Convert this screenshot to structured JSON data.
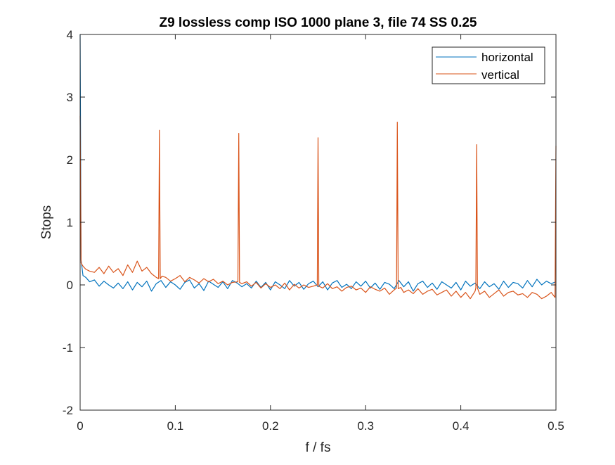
{
  "chart_data": {
    "type": "line",
    "title": "Z9 lossless comp ISO 1000 plane 3, file 74 SS 0.25",
    "xlabel": "f / fs",
    "ylabel": "Stops",
    "xlim": [
      0,
      0.5
    ],
    "ylim": [
      -2,
      4
    ],
    "xticks": [
      0,
      0.1,
      0.2,
      0.3,
      0.4,
      0.5
    ],
    "xtick_labels": [
      "0",
      "0.1",
      "0.2",
      "0.3",
      "0.4",
      "0.5"
    ],
    "yticks": [
      -2,
      -1,
      0,
      1,
      2,
      3,
      4
    ],
    "ytick_labels": [
      "-2",
      "-1",
      "0",
      "1",
      "2",
      "3",
      "4"
    ],
    "grid": false,
    "legend_position": "top-right",
    "series": [
      {
        "name": "horizontal",
        "color": "#0072BD",
        "x": [
          0,
          0.001,
          0.003,
          0.006,
          0.01,
          0.015,
          0.02,
          0.025,
          0.03,
          0.035,
          0.04,
          0.045,
          0.05,
          0.055,
          0.06,
          0.065,
          0.07,
          0.075,
          0.08,
          0.085,
          0.09,
          0.095,
          0.1,
          0.105,
          0.11,
          0.115,
          0.12,
          0.125,
          0.13,
          0.135,
          0.14,
          0.145,
          0.15,
          0.155,
          0.16,
          0.165,
          0.17,
          0.175,
          0.18,
          0.185,
          0.19,
          0.195,
          0.2,
          0.205,
          0.21,
          0.215,
          0.22,
          0.225,
          0.23,
          0.235,
          0.24,
          0.245,
          0.25,
          0.255,
          0.26,
          0.265,
          0.27,
          0.275,
          0.28,
          0.285,
          0.29,
          0.295,
          0.3,
          0.305,
          0.31,
          0.315,
          0.32,
          0.325,
          0.33,
          0.335,
          0.34,
          0.345,
          0.35,
          0.355,
          0.36,
          0.365,
          0.37,
          0.375,
          0.38,
          0.385,
          0.39,
          0.395,
          0.4,
          0.405,
          0.41,
          0.415,
          0.42,
          0.425,
          0.43,
          0.435,
          0.44,
          0.445,
          0.45,
          0.455,
          0.46,
          0.465,
          0.47,
          0.475,
          0.48,
          0.485,
          0.49,
          0.495,
          0.5
        ],
        "values": [
          4.0,
          0.4,
          0.15,
          0.12,
          0.05,
          0.08,
          -0.02,
          0.06,
          0.0,
          -0.05,
          0.03,
          -0.06,
          0.05,
          -0.08,
          0.04,
          -0.03,
          0.06,
          -0.1,
          0.02,
          0.07,
          -0.04,
          0.05,
          0.0,
          -0.07,
          0.04,
          0.08,
          -0.05,
          0.02,
          -0.09,
          0.06,
          0.01,
          -0.04,
          0.05,
          -0.06,
          0.07,
          0.03,
          -0.03,
          0.02,
          -0.05,
          0.06,
          -0.04,
          0.04,
          -0.08,
          0.05,
          0.0,
          -0.06,
          0.07,
          -0.02,
          0.04,
          -0.07,
          0.02,
          0.06,
          -0.03,
          0.05,
          -0.08,
          0.03,
          0.07,
          -0.04,
          0.01,
          -0.06,
          0.05,
          -0.02,
          0.06,
          -0.05,
          0.03,
          -0.07,
          0.04,
          0.01,
          -0.06,
          0.07,
          -0.03,
          0.05,
          -0.1,
          0.02,
          0.06,
          -0.04,
          0.03,
          -0.07,
          0.05,
          0.0,
          -0.05,
          0.04,
          -0.08,
          0.06,
          -0.02,
          0.03,
          -0.06,
          0.05,
          -0.03,
          0.02,
          -0.07,
          0.06,
          -0.04,
          0.04,
          0.02,
          -0.05,
          0.07,
          -0.03,
          0.09,
          0.0,
          0.06,
          0.02,
          0.05
        ]
      },
      {
        "name": "vertical",
        "color": "#D95319",
        "x": [
          0,
          0.001,
          0.003,
          0.006,
          0.01,
          0.015,
          0.02,
          0.025,
          0.03,
          0.035,
          0.04,
          0.045,
          0.05,
          0.055,
          0.06,
          0.065,
          0.07,
          0.075,
          0.08,
          0.0825,
          0.0833,
          0.0842,
          0.086,
          0.09,
          0.095,
          0.1,
          0.105,
          0.11,
          0.115,
          0.12,
          0.125,
          0.13,
          0.135,
          0.14,
          0.145,
          0.15,
          0.155,
          0.16,
          0.1658,
          0.1667,
          0.1675,
          0.17,
          0.175,
          0.18,
          0.185,
          0.19,
          0.195,
          0.2,
          0.205,
          0.21,
          0.215,
          0.22,
          0.225,
          0.23,
          0.235,
          0.24,
          0.245,
          0.2492,
          0.25,
          0.2508,
          0.255,
          0.26,
          0.265,
          0.27,
          0.275,
          0.28,
          0.285,
          0.29,
          0.295,
          0.3,
          0.305,
          0.31,
          0.315,
          0.32,
          0.325,
          0.33,
          0.3325,
          0.3333,
          0.3342,
          0.337,
          0.34,
          0.345,
          0.35,
          0.355,
          0.36,
          0.365,
          0.37,
          0.375,
          0.38,
          0.385,
          0.39,
          0.395,
          0.4,
          0.405,
          0.41,
          0.415,
          0.4158,
          0.4167,
          0.4175,
          0.42,
          0.425,
          0.43,
          0.435,
          0.44,
          0.445,
          0.45,
          0.455,
          0.46,
          0.465,
          0.47,
          0.475,
          0.48,
          0.485,
          0.49,
          0.495,
          0.499,
          0.5
        ],
        "values": [
          2.7,
          0.35,
          0.3,
          0.25,
          0.22,
          0.2,
          0.28,
          0.18,
          0.3,
          0.2,
          0.26,
          0.15,
          0.32,
          0.2,
          0.38,
          0.22,
          0.28,
          0.18,
          0.12,
          0.1,
          2.47,
          0.1,
          0.14,
          0.12,
          0.06,
          0.1,
          0.15,
          0.05,
          0.12,
          0.08,
          0.03,
          0.1,
          0.05,
          0.09,
          0.02,
          0.06,
          0.0,
          0.04,
          0.05,
          2.42,
          0.04,
          0.02,
          0.05,
          -0.02,
          0.04,
          -0.05,
          0.02,
          -0.04,
          0.0,
          -0.06,
          0.03,
          -0.08,
          0.01,
          -0.05,
          0.0,
          -0.04,
          -0.02,
          0.0,
          2.35,
          -0.02,
          -0.05,
          0.02,
          -0.06,
          -0.03,
          -0.1,
          -0.04,
          -0.02,
          -0.08,
          -0.05,
          -0.12,
          -0.03,
          -0.07,
          -0.1,
          -0.05,
          -0.15,
          -0.08,
          -0.05,
          2.6,
          -0.06,
          -0.04,
          -0.12,
          -0.08,
          -0.14,
          -0.06,
          -0.15,
          -0.1,
          -0.07,
          -0.16,
          -0.12,
          -0.08,
          -0.18,
          -0.1,
          -0.2,
          -0.12,
          -0.22,
          -0.1,
          -0.05,
          2.24,
          -0.05,
          -0.15,
          -0.1,
          -0.2,
          -0.14,
          -0.08,
          -0.18,
          -0.12,
          -0.1,
          -0.16,
          -0.14,
          -0.2,
          -0.12,
          -0.15,
          -0.22,
          -0.18,
          -0.12,
          -0.2,
          2.22
        ]
      }
    ]
  }
}
